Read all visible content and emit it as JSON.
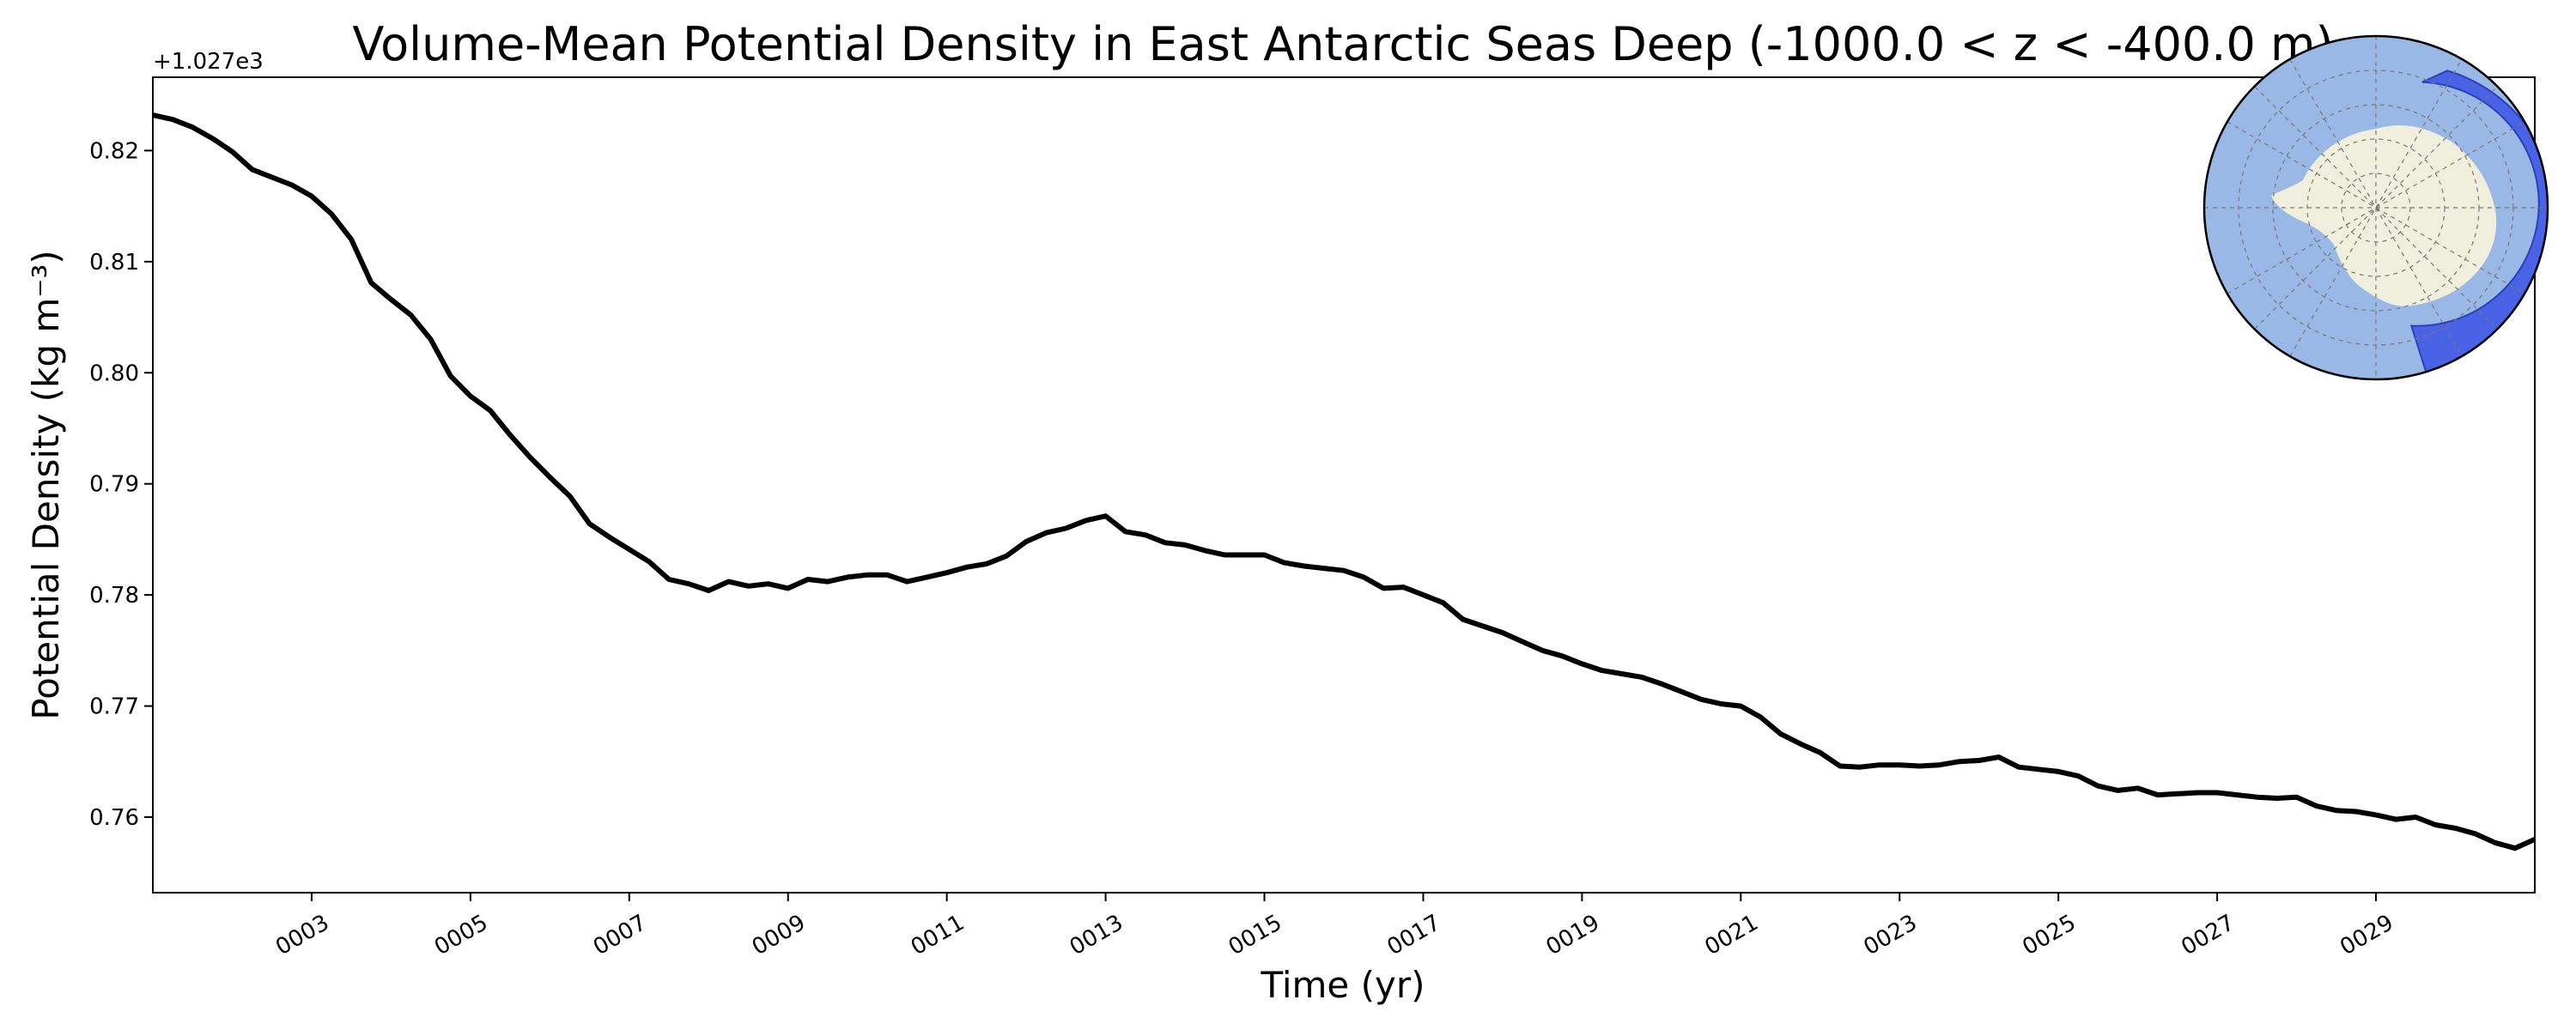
{
  "chart_data": {
    "type": "line",
    "title": "Volume-Mean Potential Density in East Antarctic Seas Deep (-1000.0 < z < -400.0 m)",
    "xlabel": "Time (yr)",
    "ylabel": "Potential Density (kg m⁻³)",
    "y_offset_label": "+1.027e3",
    "xlim": [
      1.0,
      31.0
    ],
    "ylim": [
      0.7532,
      0.8266
    ],
    "x_ticks": [
      3,
      5,
      7,
      9,
      11,
      13,
      15,
      17,
      19,
      21,
      23,
      25,
      27,
      29
    ],
    "x_tick_labels": [
      "0003",
      "0005",
      "0007",
      "0009",
      "0011",
      "0013",
      "0015",
      "0017",
      "0019",
      "0021",
      "0023",
      "0025",
      "0027",
      "0029"
    ],
    "y_ticks": [
      0.76,
      0.77,
      0.78,
      0.79,
      0.8,
      0.81,
      0.82
    ],
    "y_tick_labels": [
      "0.76",
      "0.77",
      "0.78",
      "0.79",
      "0.80",
      "0.81",
      "0.82"
    ],
    "grid": false,
    "series": [
      {
        "color": "#000000",
        "x": [
          1.0,
          1.25,
          1.5,
          1.75,
          2.0,
          2.25,
          2.5,
          2.75,
          3.0,
          3.25,
          3.5,
          3.75,
          4.0,
          4.25,
          4.5,
          4.75,
          5.0,
          5.25,
          5.5,
          5.75,
          6.0,
          6.25,
          6.5,
          6.75,
          7.0,
          7.25,
          7.5,
          7.75,
          8.0,
          8.25,
          8.5,
          8.75,
          9.0,
          9.25,
          9.5,
          9.75,
          10.0,
          10.25,
          10.5,
          10.75,
          11.0,
          11.25,
          11.5,
          11.75,
          12.0,
          12.25,
          12.5,
          12.75,
          13.0,
          13.25,
          13.5,
          13.75,
          14.0,
          14.25,
          14.5,
          14.75,
          15.0,
          15.25,
          15.5,
          15.75,
          16.0,
          16.25,
          16.5,
          16.75,
          17.0,
          17.25,
          17.5,
          17.75,
          18.0,
          18.25,
          18.5,
          18.75,
          19.0,
          19.25,
          19.5,
          19.75,
          20.0,
          20.25,
          20.5,
          20.75,
          21.0,
          21.25,
          21.5,
          21.75,
          22.0,
          22.25,
          22.5,
          22.75,
          23.0,
          23.25,
          23.5,
          23.75,
          24.0,
          24.25,
          24.5,
          24.75,
          25.0,
          25.25,
          25.5,
          25.75,
          26.0,
          26.25,
          26.5,
          26.75,
          27.0,
          27.25,
          27.5,
          27.75,
          28.0,
          28.25,
          28.5,
          28.75,
          29.0,
          29.25,
          29.5,
          29.75,
          30.0,
          30.25,
          30.5,
          30.75,
          31.0
        ],
        "y": [
          0.8232,
          0.8228,
          0.8221,
          0.8211,
          0.8199,
          0.8183,
          0.8176,
          0.8169,
          0.8159,
          0.8143,
          0.812,
          0.8081,
          0.8066,
          0.8052,
          0.803,
          0.7997,
          0.7979,
          0.7966,
          0.7944,
          0.7924,
          0.7906,
          0.7889,
          0.7864,
          0.7852,
          0.7841,
          0.783,
          0.7814,
          0.781,
          0.7804,
          0.7812,
          0.7808,
          0.781,
          0.7806,
          0.7814,
          0.7812,
          0.7816,
          0.7818,
          0.7818,
          0.7812,
          0.7816,
          0.782,
          0.7825,
          0.7828,
          0.7835,
          0.7848,
          0.7856,
          0.786,
          0.7867,
          0.7871,
          0.7857,
          0.7854,
          0.7847,
          0.7845,
          0.784,
          0.7836,
          0.7836,
          0.7836,
          0.7829,
          0.7826,
          0.7824,
          0.7822,
          0.7816,
          0.7806,
          0.7807,
          0.78,
          0.7793,
          0.7778,
          0.7772,
          0.7766,
          0.7758,
          0.775,
          0.7745,
          0.7738,
          0.7732,
          0.7729,
          0.7726,
          0.772,
          0.7713,
          0.7706,
          0.7702,
          0.77,
          0.769,
          0.7675,
          0.7666,
          0.7658,
          0.7646,
          0.7645,
          0.7647,
          0.7647,
          0.7646,
          0.7647,
          0.765,
          0.7651,
          0.7654,
          0.7645,
          0.7643,
          0.7641,
          0.7637,
          0.7628,
          0.7624,
          0.7626,
          0.762,
          0.7621,
          0.7622,
          0.7622,
          0.762,
          0.7618,
          0.7617,
          0.7618,
          0.761,
          0.7606,
          0.7605,
          0.7602,
          0.7598,
          0.76,
          0.7593,
          0.759,
          0.7585,
          0.7577,
          0.7572,
          0.758
        ]
      }
    ],
    "inset_map": {
      "description_colors": {
        "ocean": "#9ab8e6",
        "land": "#f0eedc",
        "region": "#4a62e6",
        "outline": "#000000"
      }
    }
  }
}
